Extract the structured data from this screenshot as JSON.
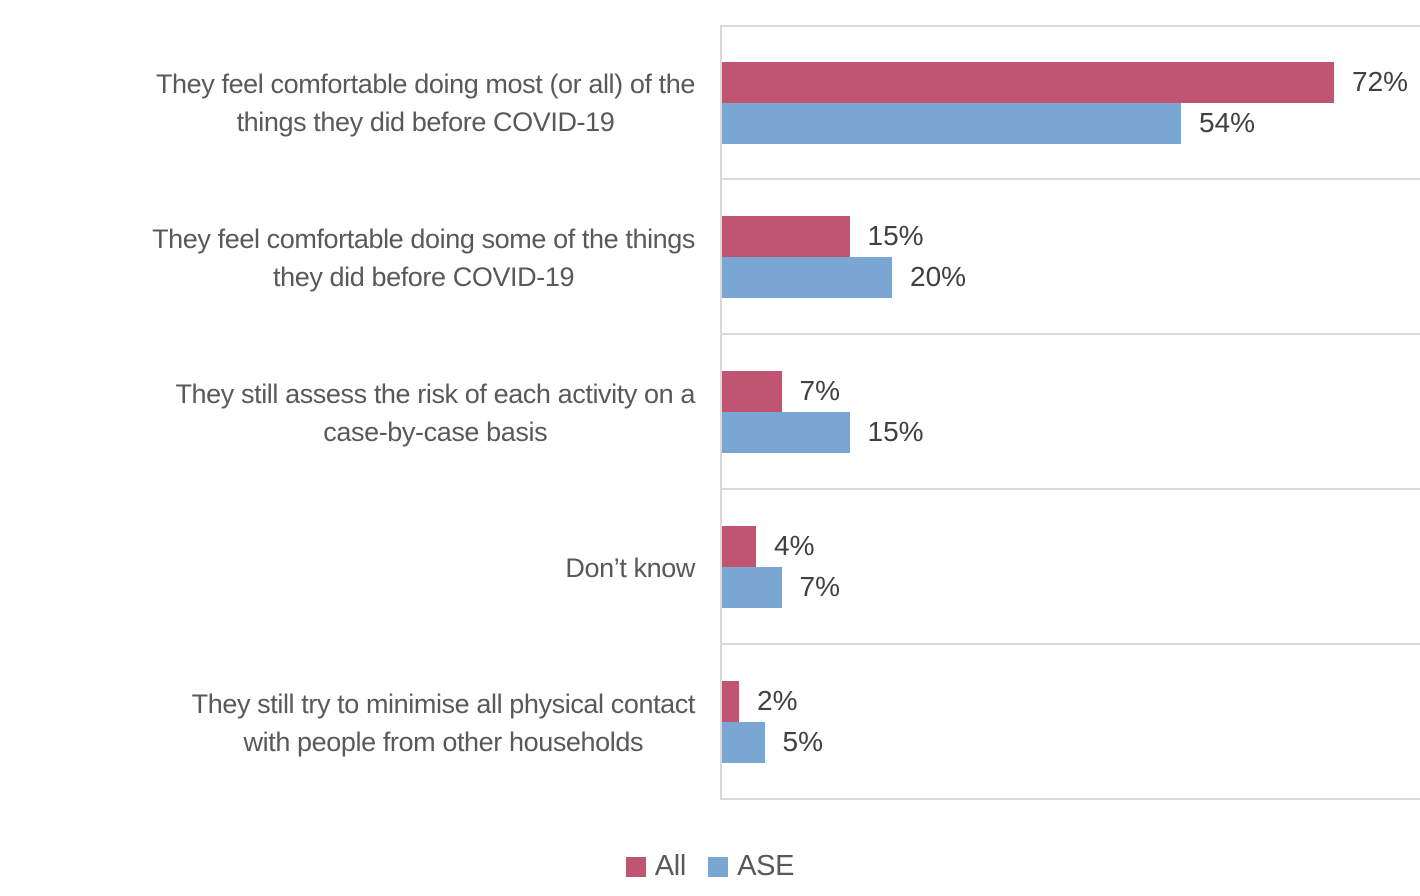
{
  "chart_data": {
    "type": "bar",
    "orientation": "horizontal",
    "title": "",
    "categories": [
      "They feel comfortable doing most (or all) of the\nthings they did before COVID-19",
      "They feel comfortable doing some of the things\nthey did before COVID-19",
      "They still assess the risk of each activity on a\ncase-by-case basis",
      "Don’t know",
      "They still try to minimise all physical contact\nwith people from other households"
    ],
    "series": [
      {
        "name": "All",
        "color": "#BF5570",
        "values": [
          72,
          15,
          7,
          4,
          2
        ]
      },
      {
        "name": "ASE",
        "color": "#79A6D2",
        "values": [
          54,
          20,
          15,
          7,
          5
        ]
      }
    ],
    "value_suffix": "%",
    "xlim": [
      0,
      82
    ],
    "grid": "horizontal category separators",
    "legend_position": "bottom",
    "data_labels": true
  },
  "colors": {
    "grid": "#D9D9D9",
    "category_text": "#595959",
    "value_text": "#404040",
    "legend_text": "#595959",
    "background": "#FFFFFF"
  }
}
